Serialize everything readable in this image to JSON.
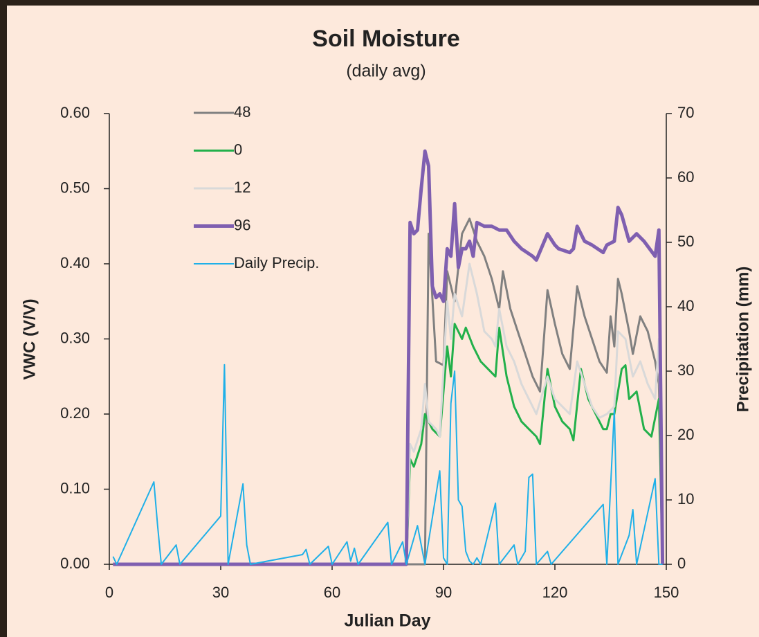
{
  "chart_data": {
    "type": "line",
    "title": "Soil Moisture",
    "subtitle": "(daily avg)",
    "x_label": "Julian Day",
    "y_label": "VWC (V/V)",
    "y2_label": "Precipitation (mm)",
    "xlim": [
      0,
      150
    ],
    "xticks": [
      0,
      30,
      60,
      90,
      120,
      150
    ],
    "ylim": [
      0,
      0.6
    ],
    "yticks": [
      {
        "value": 0,
        "label": "0.00"
      },
      {
        "value": 0.1,
        "label": "0.10"
      },
      {
        "value": 0.2,
        "label": "0.20"
      },
      {
        "value": 0.3,
        "label": "0.30"
      },
      {
        "value": 0.4,
        "label": "0.40"
      },
      {
        "value": 0.5,
        "label": "0.50"
      },
      {
        "value": 0.6,
        "label": "0.60"
      }
    ],
    "y2lim": [
      0,
      70
    ],
    "y2ticks": [
      0,
      10,
      20,
      30,
      40,
      50,
      60,
      70
    ],
    "grid": false,
    "legend": "upper left",
    "series": [
      {
        "name": "48",
        "color": "#808080",
        "width": 3,
        "x": [
          1,
          85,
          86,
          88,
          90,
          91,
          93,
          95,
          97,
          99,
          101,
          103,
          105,
          106,
          108,
          110,
          112,
          114,
          116,
          118,
          120,
          122,
          124,
          126,
          128,
          130,
          132,
          134,
          135,
          136,
          137,
          138,
          140,
          141,
          143,
          145,
          147,
          148,
          149
        ],
        "values": [
          0,
          0,
          0.44,
          0.27,
          0.265,
          0.39,
          0.35,
          0.44,
          0.46,
          0.43,
          0.41,
          0.38,
          0.34,
          0.39,
          0.34,
          0.31,
          0.28,
          0.25,
          0.23,
          0.365,
          0.32,
          0.28,
          0.26,
          0.37,
          0.33,
          0.3,
          0.27,
          0.255,
          0.33,
          0.29,
          0.38,
          0.36,
          0.31,
          0.28,
          0.33,
          0.31,
          0.27,
          0.24,
          0
        ]
      },
      {
        "name": "0",
        "color": "#22b04b",
        "width": 3,
        "x": [
          1,
          80,
          81,
          82,
          84,
          85,
          87,
          89,
          91,
          92,
          93,
          95,
          96,
          98,
          100,
          102,
          104,
          105,
          107,
          109,
          111,
          113,
          115,
          116,
          118,
          120,
          122,
          124,
          125,
          127,
          129,
          131,
          133,
          134,
          135,
          136,
          138,
          139,
          140,
          142,
          144,
          146,
          148,
          149
        ],
        "values": [
          0,
          0,
          0.14,
          0.13,
          0.16,
          0.2,
          0.18,
          0.17,
          0.29,
          0.25,
          0.32,
          0.3,
          0.315,
          0.29,
          0.27,
          0.26,
          0.25,
          0.315,
          0.25,
          0.21,
          0.19,
          0.18,
          0.17,
          0.16,
          0.26,
          0.21,
          0.19,
          0.18,
          0.165,
          0.26,
          0.22,
          0.2,
          0.18,
          0.18,
          0.2,
          0.2,
          0.26,
          0.265,
          0.22,
          0.23,
          0.18,
          0.17,
          0.22,
          0
        ]
      },
      {
        "name": "12",
        "color": "#d9d9d9",
        "width": 3,
        "x": [
          1,
          80,
          81,
          82,
          84,
          85,
          86,
          88,
          89,
          91,
          92,
          93,
          95,
          97,
          99,
          101,
          103,
          104,
          105,
          107,
          109,
          111,
          113,
          115,
          118,
          120,
          122,
          124,
          126,
          128,
          130,
          132,
          134,
          136,
          137,
          139,
          141,
          143,
          145,
          147,
          148,
          149
        ],
        "values": [
          0,
          0,
          0.16,
          0.15,
          0.18,
          0.24,
          0.19,
          0.18,
          0.17,
          0.35,
          0.3,
          0.36,
          0.33,
          0.4,
          0.36,
          0.31,
          0.3,
          0.29,
          0.34,
          0.29,
          0.27,
          0.24,
          0.22,
          0.2,
          0.25,
          0.22,
          0.21,
          0.2,
          0.27,
          0.24,
          0.21,
          0.195,
          0.2,
          0.21,
          0.31,
          0.3,
          0.25,
          0.27,
          0.24,
          0.22,
          0.3,
          0
        ]
      },
      {
        "name": "96",
        "color": "#7f5fb0",
        "width": 5,
        "x": [
          1,
          80,
          81,
          82,
          83,
          84,
          85,
          86,
          87,
          88,
          89,
          90,
          91,
          92,
          93,
          94,
          95,
          96,
          97,
          98,
          99,
          101,
          103,
          105,
          107,
          109,
          111,
          114,
          115,
          118,
          120,
          121,
          124,
          125,
          126,
          128,
          130,
          133,
          134,
          136,
          137,
          138,
          140,
          142,
          144,
          147,
          148,
          149
        ],
        "values": [
          0,
          0,
          0.455,
          0.44,
          0.445,
          0.5,
          0.55,
          0.53,
          0.37,
          0.355,
          0.36,
          0.35,
          0.42,
          0.41,
          0.48,
          0.395,
          0.42,
          0.42,
          0.43,
          0.41,
          0.455,
          0.45,
          0.45,
          0.445,
          0.445,
          0.43,
          0.42,
          0.41,
          0.405,
          0.44,
          0.425,
          0.42,
          0.415,
          0.42,
          0.45,
          0.43,
          0.425,
          0.415,
          0.425,
          0.43,
          0.475,
          0.465,
          0.43,
          0.44,
          0.43,
          0.41,
          0.445,
          0
        ]
      },
      {
        "name": "Daily Precip.",
        "color": "#1fb0e8",
        "width": 2,
        "axis": "y2",
        "x": [
          1,
          2,
          12,
          13,
          14,
          18,
          19,
          30,
          31,
          32,
          36,
          37,
          38,
          52,
          53,
          54,
          59,
          60,
          64,
          65,
          66,
          67,
          75,
          76,
          79,
          80,
          83,
          84,
          85,
          89,
          90,
          91,
          92,
          93,
          94,
          95,
          96,
          97,
          98,
          99,
          100,
          104,
          105,
          109,
          110,
          112,
          113,
          114,
          115,
          118,
          119,
          133,
          134,
          136,
          137,
          140,
          141,
          142,
          147,
          148,
          149
        ],
        "values": [
          1.2,
          0,
          12.8,
          6,
          0,
          3,
          0,
          7.5,
          31,
          0,
          12.5,
          3,
          0,
          1.5,
          2.3,
          0,
          2.8,
          0,
          3.5,
          0.5,
          2.5,
          0,
          6.5,
          0,
          3.5,
          0,
          6,
          3,
          0,
          14.5,
          1,
          0,
          25,
          30,
          10,
          9,
          2,
          0.5,
          0,
          1,
          0,
          9.5,
          0,
          3,
          0,
          2,
          13.5,
          14,
          0,
          2,
          0,
          9.3,
          0,
          24,
          0,
          4.5,
          8.5,
          0,
          13.3,
          0,
          0
        ]
      }
    ]
  }
}
